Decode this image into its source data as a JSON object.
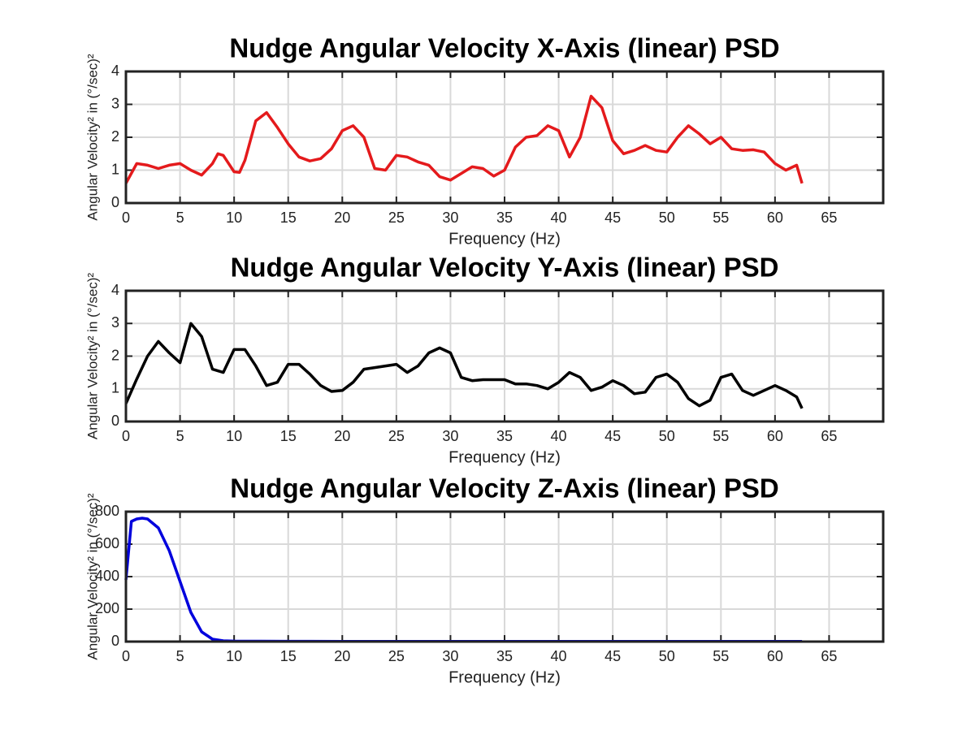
{
  "chart_data": [
    {
      "type": "line",
      "title": "Nudge Angular Velocity X-Axis (linear) PSD",
      "xlabel": "Frequency (Hz)",
      "ylabel": "Angular Velocity² in (°/sec)²",
      "color": "#e41a1c",
      "grid": true,
      "xlim": [
        0,
        70
      ],
      "xticks": [
        0,
        5,
        10,
        15,
        20,
        25,
        30,
        35,
        40,
        45,
        50,
        55,
        60,
        65
      ],
      "ylim": [
        0,
        4
      ],
      "yticks": [
        0,
        1,
        2,
        3,
        4
      ],
      "x": [
        0,
        1,
        2,
        3,
        4,
        5,
        6,
        7,
        8,
        8.5,
        9,
        10,
        10.5,
        11,
        12,
        13,
        14,
        15,
        16,
        17,
        18,
        19,
        20,
        21,
        22,
        23,
        24,
        25,
        26,
        27,
        28,
        29,
        30,
        31,
        32,
        33,
        34,
        35,
        36,
        37,
        38,
        39,
        40,
        41,
        42,
        43,
        44,
        45,
        46,
        47,
        48,
        49,
        50,
        51,
        52,
        53,
        54,
        55,
        56,
        57,
        58,
        59,
        60,
        61,
        62,
        62.5
      ],
      "values": [
        0.6,
        1.2,
        1.15,
        1.05,
        1.15,
        1.2,
        1.0,
        0.85,
        1.2,
        1.5,
        1.45,
        0.95,
        0.93,
        1.3,
        2.5,
        2.75,
        2.3,
        1.8,
        1.4,
        1.28,
        1.35,
        1.65,
        2.2,
        2.35,
        2.0,
        1.05,
        1.0,
        1.45,
        1.4,
        1.25,
        1.15,
        0.8,
        0.7,
        0.9,
        1.1,
        1.05,
        0.82,
        1.0,
        1.7,
        2.0,
        2.05,
        2.35,
        2.2,
        1.4,
        2.0,
        3.25,
        2.9,
        1.9,
        1.5,
        1.6,
        1.75,
        1.6,
        1.55,
        2.0,
        2.35,
        2.1,
        1.8,
        2.0,
        1.65,
        1.6,
        1.62,
        1.55,
        1.2,
        1.0,
        1.15,
        0.6
      ]
    },
    {
      "type": "line",
      "title": "Nudge Angular Velocity Y-Axis (linear) PSD",
      "xlabel": "Frequency (Hz)",
      "ylabel": "Angular Velocity² in (°/sec)²",
      "color": "#000000",
      "grid": true,
      "xlim": [
        0,
        70
      ],
      "xticks": [
        0,
        5,
        10,
        15,
        20,
        25,
        30,
        35,
        40,
        45,
        50,
        55,
        60,
        65
      ],
      "ylim": [
        0,
        4
      ],
      "yticks": [
        0,
        1,
        2,
        3,
        4
      ],
      "x": [
        0,
        1,
        2,
        3,
        4,
        5,
        6,
        7,
        8,
        9,
        10,
        11,
        12,
        13,
        14,
        15,
        16,
        17,
        18,
        19,
        20,
        21,
        22,
        23,
        24,
        25,
        26,
        27,
        28,
        29,
        30,
        31,
        32,
        33,
        34,
        35,
        36,
        37,
        38,
        39,
        40,
        41,
        42,
        43,
        44,
        45,
        46,
        47,
        48,
        49,
        50,
        51,
        52,
        53,
        54,
        55,
        56,
        57,
        58,
        59,
        60,
        61,
        62,
        62.5
      ],
      "values": [
        0.55,
        1.3,
        2.0,
        2.45,
        2.1,
        1.8,
        3.0,
        2.6,
        1.6,
        1.5,
        2.2,
        2.2,
        1.7,
        1.1,
        1.2,
        1.75,
        1.75,
        1.45,
        1.1,
        0.92,
        0.95,
        1.2,
        1.6,
        1.65,
        1.7,
        1.75,
        1.5,
        1.7,
        2.1,
        2.25,
        2.1,
        1.35,
        1.25,
        1.28,
        1.28,
        1.28,
        1.15,
        1.15,
        1.1,
        1.0,
        1.2,
        1.5,
        1.35,
        0.95,
        1.05,
        1.25,
        1.1,
        0.85,
        0.9,
        1.35,
        1.45,
        1.2,
        0.7,
        0.48,
        0.65,
        1.35,
        1.45,
        0.95,
        0.8,
        0.95,
        1.1,
        0.95,
        0.75,
        0.4
      ]
    },
    {
      "type": "line",
      "title": "Nudge Angular Velocity Z-Axis (linear) PSD",
      "xlabel": "Frequency (Hz)",
      "ylabel": "Angular Velocity² in (°/sec)²",
      "color": "#0000dd",
      "grid": true,
      "xlim": [
        0,
        70
      ],
      "xticks": [
        0,
        5,
        10,
        15,
        20,
        25,
        30,
        35,
        40,
        45,
        50,
        55,
        60,
        65
      ],
      "ylim": [
        0,
        800
      ],
      "yticks": [
        0,
        200,
        400,
        600,
        800
      ],
      "x": [
        0,
        0.5,
        1,
        1.5,
        2,
        3,
        4,
        5,
        6,
        7,
        8,
        9,
        10,
        15,
        20,
        25,
        30,
        35,
        40,
        45,
        50,
        55,
        60,
        62.5
      ],
      "values": [
        380,
        740,
        755,
        760,
        755,
        700,
        560,
        370,
        180,
        60,
        15,
        5,
        3,
        2,
        1,
        1,
        1,
        1,
        1,
        1,
        1,
        1,
        1,
        1
      ]
    }
  ]
}
